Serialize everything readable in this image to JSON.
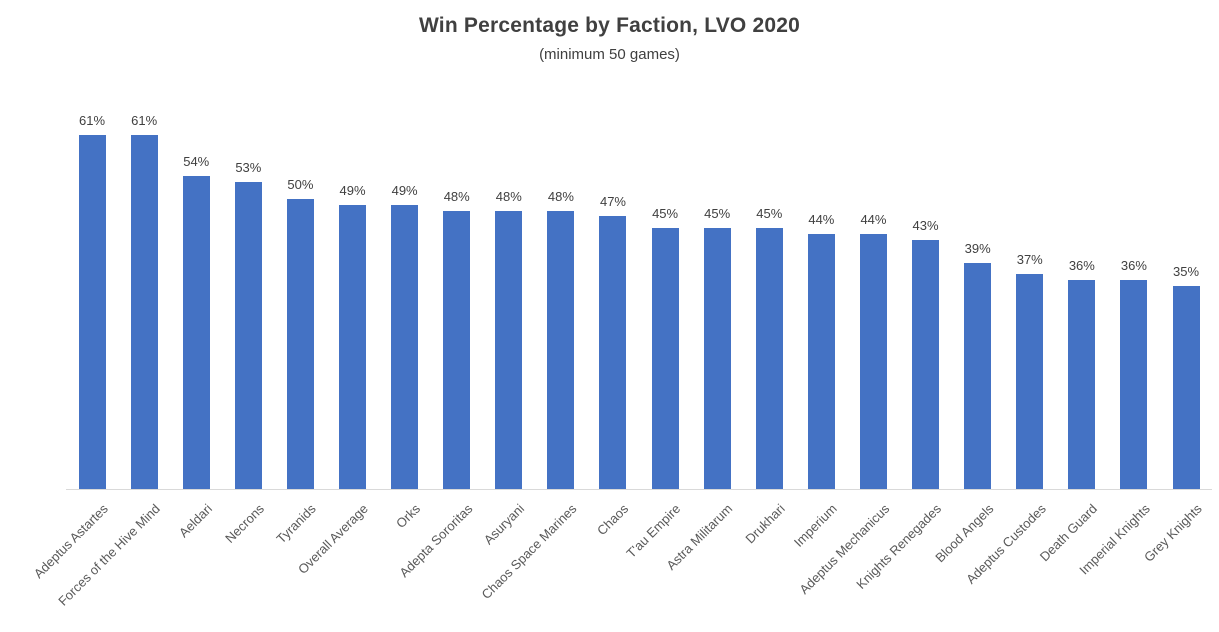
{
  "title": "Win Percentage by Faction, LVO 2020",
  "subtitle": "(minimum 50 games)",
  "colors": {
    "bar": "#4472C4",
    "title_text": "#404040",
    "value_label_text": "#404040",
    "axis_label_text": "#595959",
    "baseline": "#d9d9d9"
  },
  "chart_data": {
    "type": "bar",
    "title": "Win Percentage by Faction, LVO 2020",
    "subtitle": "(minimum 50 games)",
    "xlabel": "",
    "ylabel": "",
    "categories": [
      "Adeptus Astartes",
      "Forces of the Hive Mind",
      "Aeldari",
      "Necrons",
      "Tyranids",
      "Overall Average",
      "Orks",
      "Adepta Sororitas",
      "Asuryani",
      "Chaos Space Marines",
      "Chaos",
      "T'au Empire",
      "Astra Militarum",
      "Drukhari",
      "Imperium",
      "Adeptus Mechanicus",
      "Knights Renegades",
      "Blood Angels",
      "Adeptus Custodes",
      "Death Guard",
      "Imperial Knights",
      "Grey Knights"
    ],
    "values": [
      61,
      61,
      54,
      53,
      50,
      49,
      49,
      48,
      48,
      48,
      47,
      45,
      45,
      45,
      44,
      44,
      43,
      39,
      37,
      36,
      36,
      35
    ],
    "value_labels": [
      "61%",
      "61%",
      "54%",
      "53%",
      "50%",
      "49%",
      "49%",
      "48%",
      "48%",
      "48%",
      "47%",
      "45%",
      "45%",
      "45%",
      "44%",
      "44%",
      "43%",
      "39%",
      "37%",
      "36%",
      "36%",
      "35%"
    ],
    "unit": "%",
    "data_labels_position": "above bars",
    "x_tick_rotation_deg": 45,
    "axes_hidden": true,
    "grid": false,
    "legend": false
  }
}
